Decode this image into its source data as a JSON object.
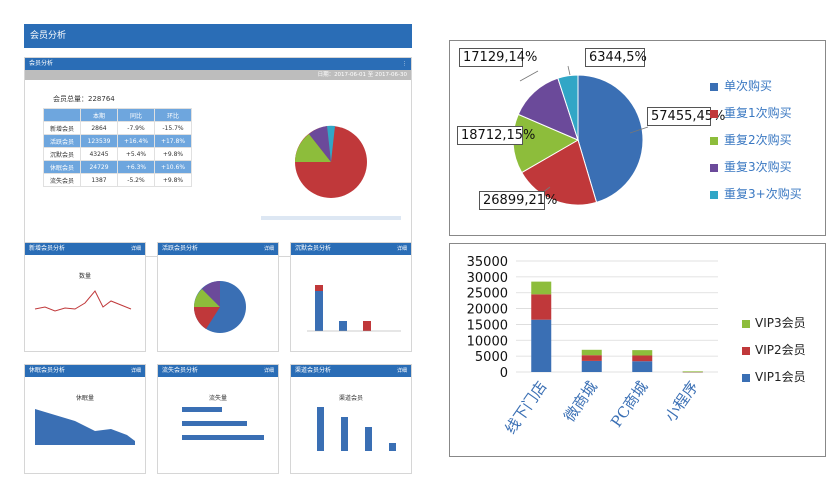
{
  "dashboard": {
    "title": "会员分析",
    "summary_panel": {
      "title": "会员分析",
      "menu_icon": "more-icon",
      "date_range": "日期：2017-06-01 至 2017-06-30",
      "total_label": "会员总量：",
      "total_value": "228764",
      "table": {
        "headers": [
          "",
          "本期",
          "同比",
          "环比"
        ],
        "rows": [
          [
            "新增会员",
            "2864",
            "-7.9%",
            "-15.7%"
          ],
          [
            "活跃会员",
            "123539",
            "+16.4%",
            "+17.8%"
          ],
          [
            "沉默会员",
            "43245",
            "+5.4%",
            "+9.8%"
          ],
          [
            "休眠会员",
            "24729",
            "+6.3%",
            "+10.6%"
          ],
          [
            "流失会员",
            "1387",
            "-5.2%",
            "+9.8%"
          ]
        ]
      }
    },
    "small_panels": [
      {
        "title": "新增会员分析",
        "action": "详细",
        "chart_title": "数量"
      },
      {
        "title": "活跃会员分析",
        "action": "详细",
        "chart_title": ""
      },
      {
        "title": "沉默会员分析",
        "action": "详细",
        "chart_title": ""
      },
      {
        "title": "休眠会员分析",
        "action": "详细",
        "chart_title": "休眠量"
      },
      {
        "title": "流失会员分析",
        "action": "详细",
        "chart_title": "流失量"
      },
      {
        "title": "渠道会员分析",
        "action": "详细",
        "chart_title": "渠道会员"
      }
    ]
  },
  "colors": {
    "blue": "#3a6fb4",
    "red": "#c0383a",
    "green": "#8dbd3b",
    "purple": "#6b4a9a",
    "teal": "#31a6c6",
    "header": "#2a6db6"
  },
  "chart_data": [
    {
      "type": "pie",
      "labels": [
        "单次购买",
        "重复1次购买",
        "重复2次购买",
        "重复3次购买",
        "重复3+次购买"
      ],
      "values": [
        57455,
        26899,
        18712,
        17129,
        6344
      ],
      "percents": [
        45,
        21,
        15,
        14,
        5
      ],
      "data_labels": [
        "57455,45%",
        "26899,21%",
        "18712,15%",
        "17129,14%",
        "6344,5%"
      ],
      "colors": [
        "#3a6fb4",
        "#c0383a",
        "#8dbd3b",
        "#6b4a9a",
        "#31a6c6"
      ],
      "legend_position": "right"
    },
    {
      "type": "bar",
      "stacked": true,
      "categories": [
        "线下门店",
        "微商城",
        "PC商城",
        "小程序"
      ],
      "series": [
        {
          "name": "VIP1会员",
          "values": [
            16500,
            3500,
            3400,
            100
          ]
        },
        {
          "name": "VIP2会员",
          "values": [
            8000,
            1800,
            1800,
            50
          ]
        },
        {
          "name": "VIP3会员",
          "values": [
            4000,
            1700,
            1700,
            50
          ]
        }
      ],
      "colors": [
        "#3a6fb4",
        "#c0383a",
        "#8dbd3b"
      ],
      "yticks": [
        "35000",
        "30000",
        "25000",
        "20000",
        "15000",
        "10000",
        "5000",
        "0"
      ],
      "ylim": [
        0,
        35000
      ],
      "legend_position": "right",
      "grid": true
    }
  ]
}
